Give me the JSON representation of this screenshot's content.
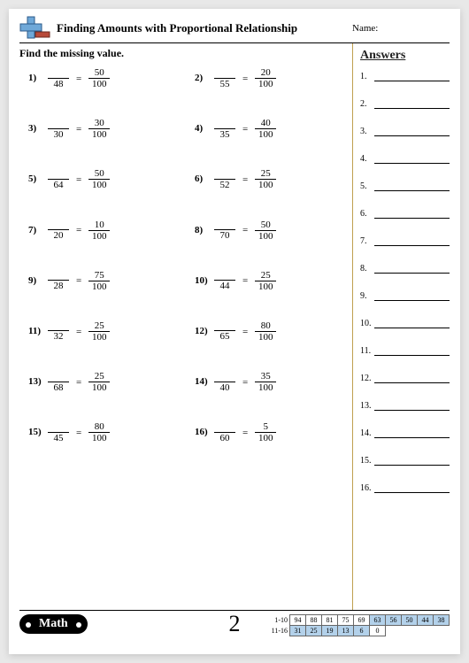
{
  "header": {
    "title": "Finding Amounts with Proportional Relationship",
    "name_label": "Name:"
  },
  "instruction": "Find the missing value.",
  "answers_title": "Answers",
  "page_number": "2",
  "footer_badge": "Math",
  "problems": [
    {
      "n": "1)",
      "d1": "48",
      "n2": "50",
      "d2": "100"
    },
    {
      "n": "2)",
      "d1": "55",
      "n2": "20",
      "d2": "100"
    },
    {
      "n": "3)",
      "d1": "30",
      "n2": "30",
      "d2": "100"
    },
    {
      "n": "4)",
      "d1": "35",
      "n2": "40",
      "d2": "100"
    },
    {
      "n": "5)",
      "d1": "64",
      "n2": "50",
      "d2": "100"
    },
    {
      "n": "6)",
      "d1": "52",
      "n2": "25",
      "d2": "100"
    },
    {
      "n": "7)",
      "d1": "20",
      "n2": "10",
      "d2": "100"
    },
    {
      "n": "8)",
      "d1": "70",
      "n2": "50",
      "d2": "100"
    },
    {
      "n": "9)",
      "d1": "28",
      "n2": "75",
      "d2": "100"
    },
    {
      "n": "10)",
      "d1": "44",
      "n2": "25",
      "d2": "100"
    },
    {
      "n": "11)",
      "d1": "32",
      "n2": "25",
      "d2": "100"
    },
    {
      "n": "12)",
      "d1": "65",
      "n2": "80",
      "d2": "100"
    },
    {
      "n": "13)",
      "d1": "68",
      "n2": "25",
      "d2": "100"
    },
    {
      "n": "14)",
      "d1": "40",
      "n2": "35",
      "d2": "100"
    },
    {
      "n": "15)",
      "d1": "45",
      "n2": "80",
      "d2": "100"
    },
    {
      "n": "16)",
      "d1": "60",
      "n2": "5",
      "d2": "100"
    }
  ],
  "answer_lines": [
    "1.",
    "2.",
    "3.",
    "4.",
    "5.",
    "6.",
    "7.",
    "8.",
    "9.",
    "10.",
    "11.",
    "12.",
    "13.",
    "14.",
    "15.",
    "16."
  ],
  "score": {
    "row1_label": "1-10",
    "row2_label": "11-16",
    "row1": [
      "94",
      "88",
      "81",
      "75",
      "69",
      "63",
      "56",
      "50",
      "44",
      "38"
    ],
    "row2": [
      "31",
      "25",
      "19",
      "13",
      "6",
      "0"
    ],
    "row1_colors": [
      "#ffffff",
      "#ffffff",
      "#ffffff",
      "#ffffff",
      "#ffffff",
      "#b3d1ea",
      "#b3d1ea",
      "#b3d1ea",
      "#b3d1ea",
      "#b3d1ea"
    ],
    "row2_colors": [
      "#b3d1ea",
      "#b3d1ea",
      "#b3d1ea",
      "#b3d1ea",
      "#b3d1ea",
      "#ffffff"
    ]
  },
  "logo_colors": {
    "plus_v": "#6fa8d8",
    "plus_h": "#6fa8d8",
    "plus_border": "#2b5a8a",
    "minus": "#b84a3a"
  }
}
